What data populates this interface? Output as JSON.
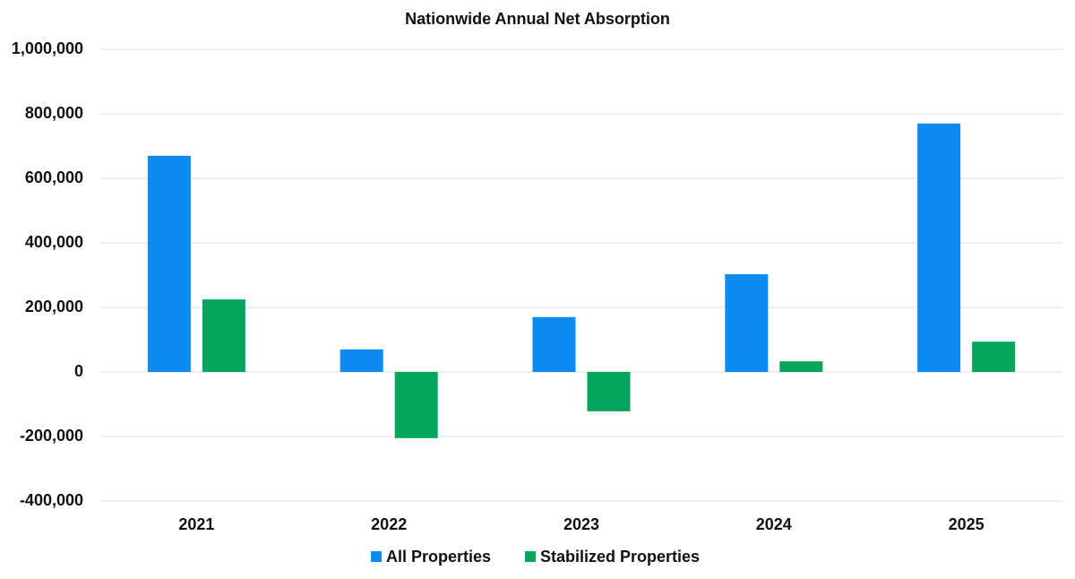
{
  "chart_data": {
    "type": "bar",
    "title": "Nationwide Annual Net Absorption",
    "categories": [
      "2021",
      "2022",
      "2023",
      "2024",
      "2025"
    ],
    "series": [
      {
        "name": "All Properties",
        "color": "#0d8bf2",
        "values": [
          670000,
          70000,
          170000,
          303000,
          770000
        ]
      },
      {
        "name": "Stabilized Properties",
        "color": "#03a65a",
        "values": [
          225000,
          -205000,
          -122000,
          33000,
          94000
        ]
      }
    ],
    "ylim": [
      -400000,
      1000000
    ],
    "yticks": [
      {
        "value": -400000,
        "label": "-400,000"
      },
      {
        "value": -200000,
        "label": "-200,000"
      },
      0,
      {
        "value": 200000,
        "label": "200,000"
      },
      {
        "value": 400000,
        "label": "400,000"
      },
      {
        "value": 600000,
        "label": "600,000"
      },
      {
        "value": 800000,
        "label": "800,000"
      },
      {
        "value": 1000000,
        "label": "1,000,000"
      }
    ],
    "grid": true,
    "legend": "bottom"
  }
}
